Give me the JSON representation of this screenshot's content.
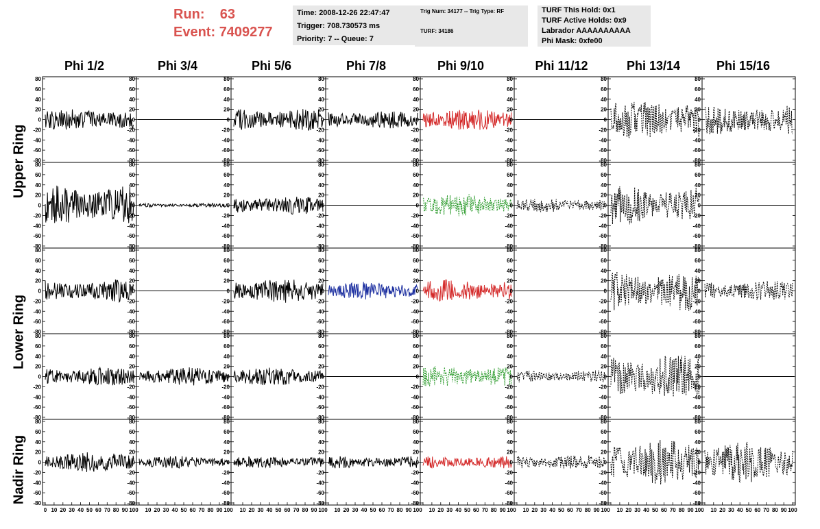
{
  "header": {
    "run_label": "Run:",
    "run_value": "63",
    "event_label": "Event:",
    "event_value": "7409277",
    "time": "Time: 2008-12-26 22:47:47",
    "trigger": "Trigger: 708.730573 ms",
    "priority": "Priority: 7 -- Queue: 7",
    "trig_num": "Trig Num: 34177 -- Trig Type: RF",
    "turf": "TURF: 34186",
    "turf_this_hold": "TURF This Hold: 0x1",
    "turf_active_holds": "TURF Active Holds: 0x9",
    "labrador": "Labrador AAAAAAAAAA",
    "phi_mask": "Phi Mask: 0xfe00"
  },
  "columns": [
    "Phi 1/2",
    "Phi 3/4",
    "Phi 5/6",
    "Phi 7/8",
    "Phi 9/10",
    "Phi 11/12",
    "Phi 13/14",
    "Phi 15/16"
  ],
  "ring_labels": [
    "Upper Ring",
    "Lower Ring",
    "Nadir Ring"
  ],
  "chart_data": {
    "type": "line",
    "ylim": [
      -80,
      80
    ],
    "xlim": [
      0,
      100
    ],
    "yticks": [
      "80",
      "60",
      "40",
      "20",
      "0",
      "-20",
      "-40",
      "-60",
      "-80"
    ],
    "xticks": [
      "0",
      "10",
      "20",
      "30",
      "40",
      "50",
      "60",
      "70",
      "80",
      "90",
      "100"
    ],
    "colors": {
      "black": "#000000",
      "red": "#d42a2a",
      "blue": "#1c2fa0",
      "green": "#2a9a2a"
    },
    "panels": [
      [
        {
          "color": "black",
          "style": "solid",
          "amp": 22
        },
        {
          "color": "black",
          "style": "flat",
          "amp": 0
        },
        {
          "color": "black",
          "style": "solid",
          "amp": 22
        },
        {
          "color": "black",
          "style": "solid",
          "amp": 18
        },
        {
          "color": "red",
          "style": "solid",
          "amp": 22
        },
        {
          "color": "black",
          "style": "flat",
          "amp": 0
        },
        {
          "color": "black",
          "style": "dashed",
          "amp": 40
        },
        {
          "color": "black",
          "style": "dashed",
          "amp": 30
        }
      ],
      [
        {
          "color": "black",
          "style": "solid",
          "amp": 40
        },
        {
          "color": "black",
          "style": "solid",
          "amp": 4
        },
        {
          "color": "black",
          "style": "solid",
          "amp": 18
        },
        {
          "color": "black",
          "style": "flat",
          "amp": 0
        },
        {
          "color": "green",
          "style": "dashed",
          "amp": 22
        },
        {
          "color": "black",
          "style": "dashed",
          "amp": 14
        },
        {
          "color": "black",
          "style": "dashed",
          "amp": 40
        },
        {
          "color": "black",
          "style": "flat",
          "amp": 0
        }
      ],
      [
        {
          "color": "black",
          "style": "solid",
          "amp": 22
        },
        {
          "color": "black",
          "style": "flat",
          "amp": 0
        },
        {
          "color": "black",
          "style": "solid",
          "amp": 24
        },
        {
          "color": "blue",
          "style": "solid",
          "amp": 18
        },
        {
          "color": "red",
          "style": "solid",
          "amp": 22
        },
        {
          "color": "black",
          "style": "flat",
          "amp": 0
        },
        {
          "color": "black",
          "style": "dashed",
          "amp": 40
        },
        {
          "color": "black",
          "style": "dashed",
          "amp": 20
        }
      ],
      [
        {
          "color": "black",
          "style": "solid",
          "amp": 18
        },
        {
          "color": "black",
          "style": "solid",
          "amp": 18
        },
        {
          "color": "black",
          "style": "solid",
          "amp": 18
        },
        {
          "color": "black",
          "style": "flat",
          "amp": 0
        },
        {
          "color": "green",
          "style": "dashed",
          "amp": 22
        },
        {
          "color": "black",
          "style": "dashed",
          "amp": 12
        },
        {
          "color": "black",
          "style": "dashed",
          "amp": 45
        },
        {
          "color": "black",
          "style": "flat",
          "amp": 0
        }
      ],
      [
        {
          "color": "black",
          "style": "solid",
          "amp": 20
        },
        {
          "color": "black",
          "style": "solid",
          "amp": 12
        },
        {
          "color": "black",
          "style": "solid",
          "amp": 12
        },
        {
          "color": "black",
          "style": "solid",
          "amp": 12
        },
        {
          "color": "red",
          "style": "solid",
          "amp": 12
        },
        {
          "color": "black",
          "style": "dashed",
          "amp": 14
        },
        {
          "color": "black",
          "style": "dashed",
          "amp": 45
        },
        {
          "color": "black",
          "style": "dashed",
          "amp": 40
        }
      ]
    ]
  }
}
